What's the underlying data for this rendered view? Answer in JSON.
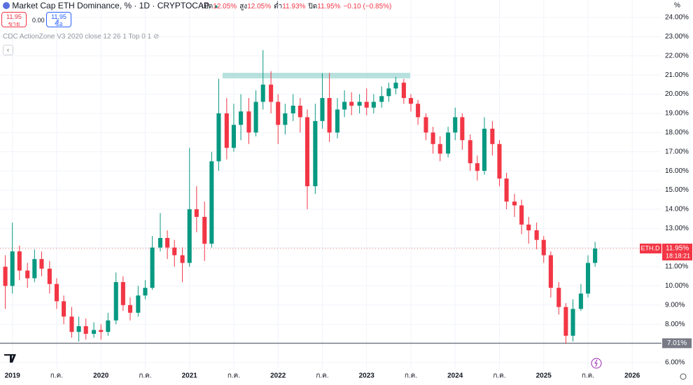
{
  "header": {
    "title": "Market Cap ETH Dominance, % · 1D · CRYPTOCAP",
    "ohlc_legend": [
      {
        "label": "เปิด",
        "value": "12.05%"
      },
      {
        "label": "สูง",
        "value": "12.05%"
      },
      {
        "label": "ต่ำ",
        "value": "11.93%"
      },
      {
        "label": "ปิด",
        "value": "11.95%"
      }
    ],
    "change": "−0.10 (−0.85%)",
    "sell": {
      "price": "11.95",
      "label": "ขาย"
    },
    "spread": "0.00",
    "buy": {
      "price": "11.95",
      "label": "ซื้อ"
    },
    "indicator": "CDC ActionZone V3 2020 close 12 26 1 Top 0 1"
  },
  "chart_data": {
    "type": "candlestick",
    "y_unit": "%",
    "up_color": "#089981",
    "down_color": "#f23645",
    "grid": true,
    "x": [
      2018.92,
      2019.0,
      2019.08,
      2019.17,
      2019.25,
      2019.33,
      2019.42,
      2019.5,
      2019.58,
      2019.67,
      2019.75,
      2019.83,
      2019.92,
      2020.0,
      2020.08,
      2020.17,
      2020.25,
      2020.33,
      2020.42,
      2020.5,
      2020.58,
      2020.67,
      2020.75,
      2020.83,
      2020.92,
      2021.0,
      2021.08,
      2021.17,
      2021.25,
      2021.33,
      2021.42,
      2021.5,
      2021.58,
      2021.67,
      2021.75,
      2021.83,
      2021.92,
      2022.0,
      2022.08,
      2022.17,
      2022.25,
      2022.33,
      2022.42,
      2022.5,
      2022.58,
      2022.67,
      2022.75,
      2022.83,
      2022.92,
      2023.0,
      2023.08,
      2023.17,
      2023.25,
      2023.33,
      2023.42,
      2023.5,
      2023.58,
      2023.67,
      2023.75,
      2023.83,
      2023.92,
      2024.0,
      2024.08,
      2024.17,
      2024.25,
      2024.33,
      2024.42,
      2024.5,
      2024.58,
      2024.67,
      2024.75,
      2024.83,
      2024.92,
      2025.0,
      2025.08,
      2025.17,
      2025.25,
      2025.33,
      2025.42,
      2025.5,
      2025.58
    ],
    "ohlc": [
      [
        11.0,
        11.6,
        8.8,
        10.0
      ],
      [
        10.0,
        13.3,
        9.6,
        11.8
      ],
      [
        11.8,
        12.1,
        10.3,
        10.8
      ],
      [
        10.8,
        11.2,
        9.9,
        10.4
      ],
      [
        10.4,
        11.9,
        10.2,
        11.4
      ],
      [
        11.4,
        11.8,
        10.5,
        10.9
      ],
      [
        10.9,
        11.3,
        9.6,
        10.1
      ],
      [
        10.1,
        10.4,
        8.8,
        9.2
      ],
      [
        9.2,
        9.5,
        8.0,
        8.4
      ],
      [
        8.4,
        8.9,
        7.3,
        7.6
      ],
      [
        7.6,
        8.4,
        7.1,
        7.9
      ],
      [
        7.9,
        8.3,
        7.2,
        7.5
      ],
      [
        7.5,
        8.1,
        7.3,
        7.7
      ],
      [
        7.7,
        8.0,
        7.2,
        7.6
      ],
      [
        7.6,
        8.6,
        7.4,
        8.2
      ],
      [
        8.2,
        10.7,
        8.0,
        10.2
      ],
      [
        10.2,
        10.5,
        8.7,
        9.0
      ],
      [
        9.0,
        9.4,
        8.2,
        8.6
      ],
      [
        8.6,
        10.0,
        8.4,
        9.5
      ],
      [
        9.5,
        10.3,
        9.3,
        9.9
      ],
      [
        9.9,
        12.6,
        9.8,
        12.0
      ],
      [
        12.0,
        13.8,
        11.8,
        12.5
      ],
      [
        12.5,
        12.9,
        11.4,
        12.0
      ],
      [
        12.0,
        12.4,
        11.0,
        11.6
      ],
      [
        11.6,
        12.0,
        10.2,
        11.2
      ],
      [
        11.2,
        17.2,
        11.0,
        14.0
      ],
      [
        14.0,
        15.2,
        12.8,
        13.6
      ],
      [
        13.6,
        14.4,
        11.3,
        12.2
      ],
      [
        12.2,
        17.0,
        12.0,
        16.5
      ],
      [
        16.5,
        20.8,
        16.0,
        19.0
      ],
      [
        19.0,
        19.8,
        16.6,
        17.2
      ],
      [
        17.2,
        19.5,
        17.0,
        18.4
      ],
      [
        18.4,
        20.0,
        17.6,
        19.1
      ],
      [
        19.1,
        19.8,
        17.4,
        18.0
      ],
      [
        18.0,
        20.2,
        17.8,
        19.6
      ],
      [
        19.6,
        22.3,
        19.2,
        20.5
      ],
      [
        20.5,
        21.2,
        19.0,
        19.6
      ],
      [
        19.6,
        20.0,
        17.4,
        18.4
      ],
      [
        18.4,
        19.5,
        17.9,
        19.0
      ],
      [
        19.0,
        20.0,
        18.6,
        19.4
      ],
      [
        19.4,
        19.8,
        18.0,
        18.8
      ],
      [
        18.8,
        19.2,
        14.0,
        15.2
      ],
      [
        15.2,
        19.5,
        14.8,
        18.6
      ],
      [
        18.6,
        21.1,
        18.2,
        19.8
      ],
      [
        19.8,
        21.1,
        17.5,
        18.0
      ],
      [
        18.0,
        19.8,
        17.7,
        19.2
      ],
      [
        19.2,
        20.2,
        18.8,
        19.6
      ],
      [
        19.6,
        20.1,
        18.9,
        19.4
      ],
      [
        19.4,
        20.0,
        19.0,
        19.6
      ],
      [
        19.6,
        20.3,
        18.9,
        19.3
      ],
      [
        19.3,
        20.0,
        19.0,
        19.6
      ],
      [
        19.6,
        20.4,
        19.3,
        19.9
      ],
      [
        19.9,
        20.6,
        19.6,
        20.3
      ],
      [
        20.3,
        20.9,
        20.0,
        20.6
      ],
      [
        20.6,
        20.8,
        19.5,
        19.8
      ],
      [
        19.8,
        20.0,
        19.1,
        19.5
      ],
      [
        19.5,
        19.7,
        18.4,
        18.8
      ],
      [
        18.8,
        19.0,
        17.6,
        18.0
      ],
      [
        18.0,
        18.3,
        16.9,
        17.4
      ],
      [
        17.4,
        17.8,
        16.5,
        16.9
      ],
      [
        16.9,
        18.3,
        16.7,
        18.0
      ],
      [
        18.0,
        19.3,
        17.6,
        18.8
      ],
      [
        18.8,
        19.0,
        17.1,
        17.6
      ],
      [
        17.6,
        17.9,
        16.0,
        16.4
      ],
      [
        16.4,
        16.8,
        15.5,
        16.0
      ],
      [
        16.0,
        18.8,
        15.8,
        18.2
      ],
      [
        18.2,
        18.6,
        16.8,
        17.4
      ],
      [
        17.4,
        17.6,
        15.2,
        15.6
      ],
      [
        15.6,
        15.9,
        14.0,
        14.4
      ],
      [
        14.4,
        14.8,
        13.6,
        14.2
      ],
      [
        14.2,
        14.5,
        12.7,
        13.2
      ],
      [
        13.2,
        13.6,
        12.2,
        12.9
      ],
      [
        12.9,
        13.3,
        11.9,
        12.4
      ],
      [
        12.4,
        12.6,
        11.2,
        11.6
      ],
      [
        11.6,
        11.8,
        9.4,
        9.9
      ],
      [
        9.9,
        10.2,
        8.5,
        8.9
      ],
      [
        8.9,
        9.1,
        7.0,
        7.4
      ],
      [
        7.4,
        9.3,
        7.1,
        8.8
      ],
      [
        8.8,
        10.1,
        8.7,
        9.6
      ],
      [
        9.6,
        11.6,
        9.4,
        11.2
      ],
      [
        11.2,
        12.3,
        11.0,
        11.95
      ]
    ],
    "xlim": [
      2018.86,
      2026.33
    ],
    "xticks": [
      {
        "value": 2019,
        "label": "2019"
      },
      {
        "value": 2019.5,
        "label": "ก.ค."
      },
      {
        "value": 2020,
        "label": "2020"
      },
      {
        "value": 2020.5,
        "label": "ก.ค."
      },
      {
        "value": 2021,
        "label": "2021"
      },
      {
        "value": 2021.5,
        "label": "ก.ค."
      },
      {
        "value": 2022,
        "label": "2022"
      },
      {
        "value": 2022.5,
        "label": "ก.ค."
      },
      {
        "value": 2023,
        "label": "2023"
      },
      {
        "value": 2023.5,
        "label": "ก.ค."
      },
      {
        "value": 2024,
        "label": "2024"
      },
      {
        "value": 2024.5,
        "label": "ก.ค."
      },
      {
        "value": 2025,
        "label": "2025"
      },
      {
        "value": 2025.5,
        "label": "ก.ค."
      },
      {
        "value": 2026,
        "label": "2026"
      }
    ],
    "ylim": [
      6,
      24
    ],
    "yticks": [
      {
        "value": 6,
        "label": "6.00%"
      },
      {
        "value": 7,
        "label": "7.00%"
      },
      {
        "value": 8,
        "label": "8.00%"
      },
      {
        "value": 9,
        "label": "9.00%"
      },
      {
        "value": 10,
        "label": "10.00%"
      },
      {
        "value": 11,
        "label": "11.00%"
      },
      {
        "value": 12,
        "label": "12.00%"
      },
      {
        "value": 13,
        "label": "13.00%"
      },
      {
        "value": 14,
        "label": "14.00%"
      },
      {
        "value": 15,
        "label": "15.00%"
      },
      {
        "value": 16,
        "label": "16.00%"
      },
      {
        "value": 17,
        "label": "17.00%"
      },
      {
        "value": 18,
        "label": "18.00%"
      },
      {
        "value": 19,
        "label": "19.00%"
      },
      {
        "value": 20,
        "label": "20.00%"
      },
      {
        "value": 21,
        "label": "21.00%"
      },
      {
        "value": 22,
        "label": "22.00%"
      },
      {
        "value": 23,
        "label": "23.00%"
      },
      {
        "value": 24,
        "label": "24.00%"
      }
    ],
    "hline": {
      "value": 7.01,
      "label": "7.01%"
    },
    "last_price": {
      "symbol": "ETH.D",
      "value": 11.95,
      "label": "11.95%",
      "countdown": "18:18:21"
    }
  }
}
